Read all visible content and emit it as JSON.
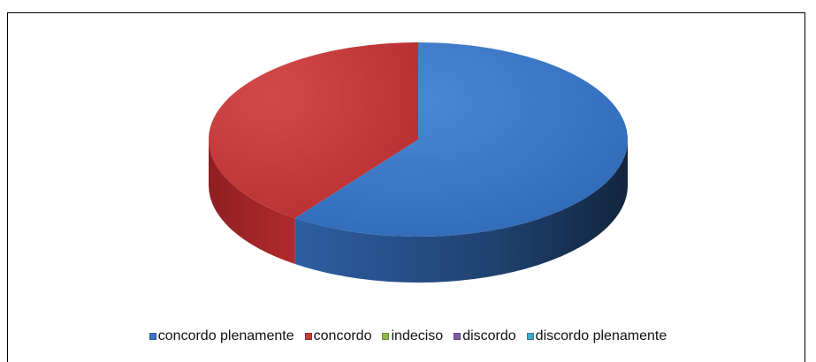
{
  "chart_data": {
    "type": "pie",
    "title": "",
    "labels": [
      "concordo plenamente",
      "concordo",
      "indeciso",
      "discordo",
      "discordo plenamente"
    ],
    "values": [
      60,
      40,
      0,
      0,
      0
    ],
    "colors": [
      "#3a75c4",
      "#c8383a",
      "#8cb84a",
      "#7e5ca6",
      "#3fa8c6"
    ],
    "legend_position": "bottom",
    "three_d": true
  }
}
